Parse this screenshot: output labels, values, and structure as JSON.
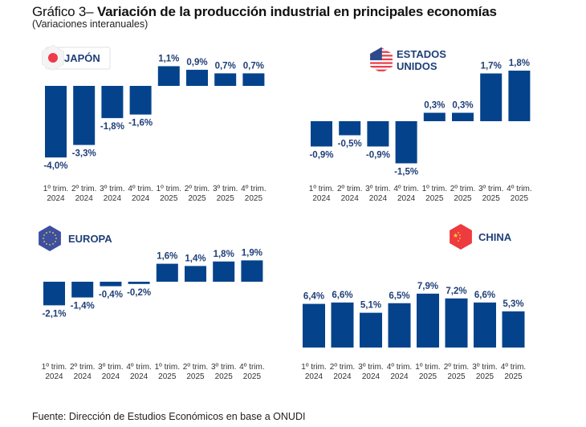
{
  "title_prefix": "Gráfico 3–",
  "title_main": "Variación de la producción industrial en principales economías",
  "subtitle": "(Variaciones interanuales)",
  "source": "Fuente: Dirección de Estudios Económicos en base a ONUDI",
  "colors": {
    "bar": "#04438c",
    "label": "#1f3f78"
  },
  "chart_data": [
    {
      "type": "bar",
      "title": "JAPÓN",
      "flag": "japan-flag",
      "categories": [
        "1º trim. 2024",
        "2º trim. 2024",
        "3º trim. 2024",
        "4º trim. 2024",
        "1º trim. 2025",
        "2º trim. 2025",
        "3º trim. 2025",
        "4º trim. 2025"
      ],
      "values": [
        -4.0,
        -3.3,
        -1.8,
        -1.6,
        1.1,
        0.9,
        0.7,
        0.7
      ],
      "labels": [
        "-4,0%",
        "-3,3%",
        "-1,8%",
        "-1,6%",
        "1,1%",
        "0,9%",
        "0,7%",
        "0,7%"
      ],
      "xlabel": "",
      "ylabel": "%"
    },
    {
      "type": "bar",
      "title": "ESTADOS UNIDOS",
      "title_lines": [
        "ESTADOS",
        "UNIDOS"
      ],
      "flag": "usa-flag",
      "categories": [
        "1º trim. 2024",
        "2º trim. 2024",
        "3º trim. 2024",
        "4º trim. 2024",
        "1º trim. 2025",
        "2º trim. 2025",
        "3º trim. 2025",
        "4º trim. 2025"
      ],
      "values": [
        -0.9,
        -0.5,
        -0.9,
        -1.5,
        0.3,
        0.3,
        1.7,
        1.8
      ],
      "labels": [
        "-0,9%",
        "-0,5%",
        "-0,9%",
        "-1,5%",
        "0,3%",
        "0,3%",
        "1,7%",
        "1,8%"
      ],
      "xlabel": "",
      "ylabel": "%"
    },
    {
      "type": "bar",
      "title": "EUROPA",
      "flag": "eu-flag",
      "categories": [
        "1º trim. 2024",
        "2º trim. 2024",
        "3º trim. 2024",
        "4º trim. 2024",
        "1º trim. 2025",
        "2º trim. 2025",
        "3º trim. 2025",
        "4º trim. 2025"
      ],
      "values": [
        -2.1,
        -1.4,
        -0.4,
        -0.2,
        1.6,
        1.4,
        1.8,
        1.9
      ],
      "labels": [
        "-2,1%",
        "-1,4%",
        "-0,4%",
        "-0,2%",
        "1,6%",
        "1,4%",
        "1,8%",
        "1,9%"
      ],
      "xlabel": "",
      "ylabel": "%"
    },
    {
      "type": "bar",
      "title": "CHINA",
      "flag": "china-flag",
      "categories": [
        "1º trim. 2024",
        "2º trim. 2024",
        "3º trim. 2024",
        "4º trim. 2024",
        "1º trim. 2025",
        "2º trim. 2025",
        "3º trim. 2025",
        "4º trim. 2025"
      ],
      "values": [
        6.4,
        6.6,
        5.1,
        6.5,
        7.9,
        7.2,
        6.6,
        5.3
      ],
      "labels": [
        "6,4%",
        "6,6%",
        "5,1%",
        "6,5%",
        "7,9%",
        "7,2%",
        "6,6%",
        "5,3%"
      ],
      "xlabel": "",
      "ylabel": "%"
    }
  ]
}
